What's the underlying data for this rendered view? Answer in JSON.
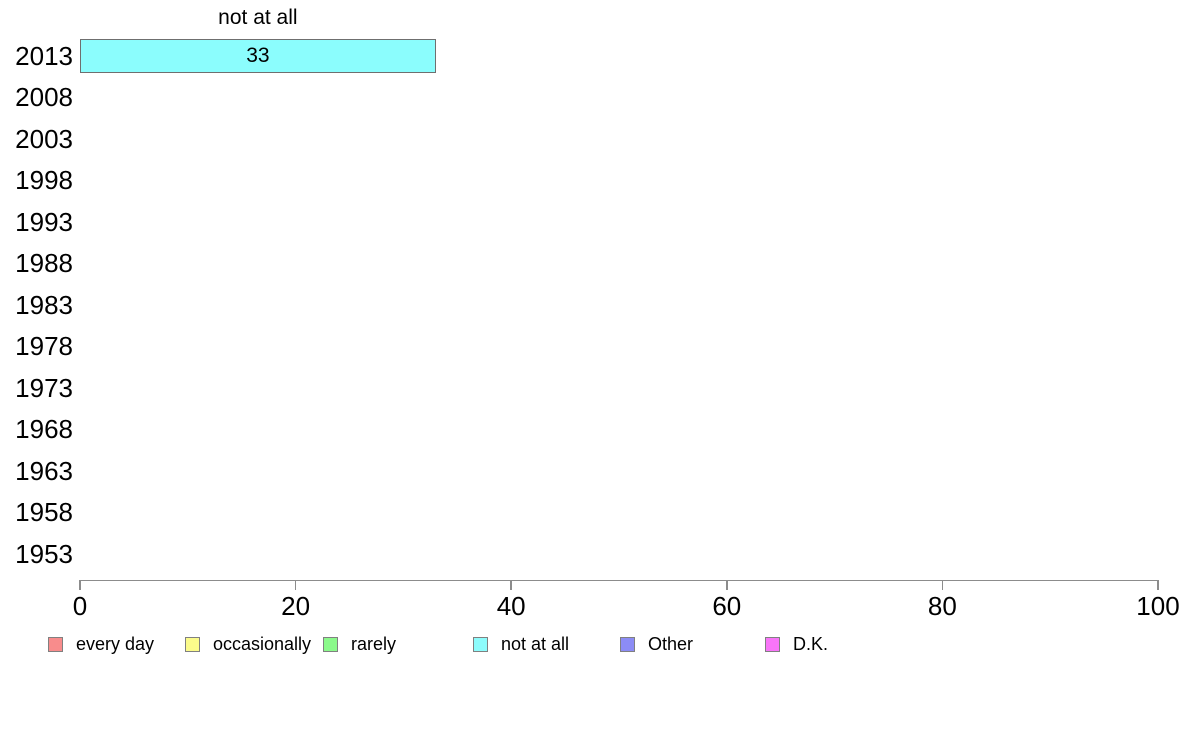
{
  "chart_data": {
    "type": "bar",
    "orientation": "horizontal",
    "title": "not at all",
    "categories": [
      "2013",
      "2008",
      "2003",
      "1998",
      "1993",
      "1988",
      "1983",
      "1978",
      "1973",
      "1968",
      "1963",
      "1958",
      "1953"
    ],
    "values": [
      33,
      null,
      null,
      null,
      null,
      null,
      null,
      null,
      null,
      null,
      null,
      null,
      null
    ],
    "bar_labels": [
      "33",
      "",
      "",
      "",
      "",
      "",
      "",
      "",
      "",
      "",
      "",
      "",
      ""
    ],
    "xlabel": "",
    "ylabel": "",
    "xlim": [
      0,
      100
    ],
    "x_ticks": [
      0,
      20,
      40,
      60,
      80,
      100
    ],
    "grid": false,
    "legend_position": "bottom",
    "colors": {
      "bar_fill": "#8BFDFD",
      "bar_border": "#6F6F6F",
      "axis": "#8C8C8C",
      "text": "#000000"
    },
    "legend": [
      {
        "label": "every day",
        "color": "#F88C8C"
      },
      {
        "label": "occasionally",
        "color": "#FBFB8B"
      },
      {
        "label": "rarely",
        "color": "#8BF98B"
      },
      {
        "label": "not at all",
        "color": "#8DFCFC"
      },
      {
        "label": "Other",
        "color": "#8C8CF5"
      },
      {
        "label": "D.K.",
        "color": "#F875F8"
      }
    ]
  }
}
